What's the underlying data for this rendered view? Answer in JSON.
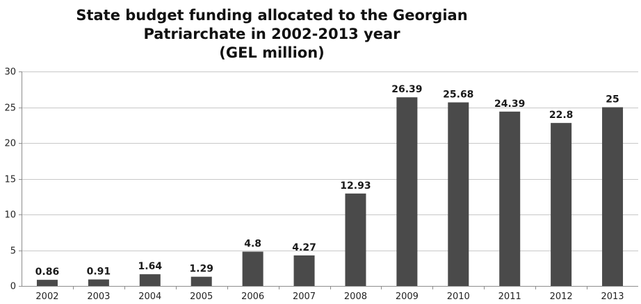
{
  "chart_data": {
    "type": "bar",
    "title_lines": [
      "State budget funding allocated to the Georgian",
      "Patriarchate in 2002-2013 year",
      "(GEL million)"
    ],
    "categories": [
      "2002",
      "2003",
      "2004",
      "2005",
      "2006",
      "2007",
      "2008",
      "2009",
      "2010",
      "2011",
      "2012",
      "2013"
    ],
    "values": [
      0.86,
      0.91,
      1.64,
      1.29,
      4.8,
      4.27,
      12.93,
      26.39,
      25.68,
      24.39,
      22.8,
      25
    ],
    "data_labels": [
      "0.86",
      "0.91",
      "1.64",
      "1.29",
      "4.8",
      "4.27",
      "12.93",
      "26.39",
      "25.68",
      "24.39",
      "22.8",
      "25"
    ],
    "ylim": [
      0,
      30
    ],
    "yticks": [
      "0",
      "5",
      "10",
      "15",
      "20",
      "25",
      "30"
    ],
    "grid": true,
    "bar_color": "#4a4a4a",
    "grid_color": "#c8c8c8",
    "axis_color": "#8c8c8c"
  }
}
